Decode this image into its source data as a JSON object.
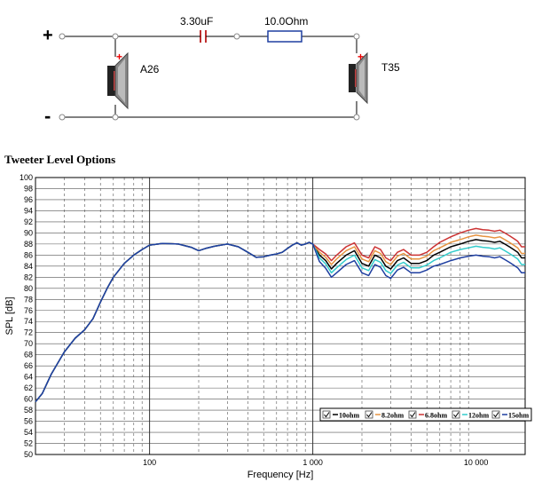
{
  "circuit": {
    "plus": "+",
    "minus": "-",
    "capacitor_label": "3.30uF",
    "resistor_label": "10.0Ohm",
    "woofer_label": "A26",
    "tweeter_label": "T35",
    "polarity_mark": "+"
  },
  "chart_data": {
    "type": "line",
    "title": "Tweeter Level Options",
    "xlabel": "Frequency [Hz]",
    "ylabel": "SPL [dB]",
    "xscale": "log",
    "xlim": [
      20,
      20000
    ],
    "ylim": [
      50,
      100
    ],
    "yticks": [
      "50",
      "52",
      "54",
      "56",
      "58",
      "60",
      "62",
      "64",
      "66",
      "68",
      "70",
      "72",
      "74",
      "76",
      "78",
      "80",
      "82",
      "84",
      "86",
      "88",
      "90",
      "92",
      "94",
      "96",
      "98",
      "100"
    ],
    "xticks": [
      {
        "value": 100,
        "label": "100"
      },
      {
        "value": 1000,
        "label": "1 000"
      },
      {
        "value": 10000,
        "label": "10 000"
      }
    ],
    "grid": true,
    "legend_placement": "bottom-right",
    "x": [
      20,
      22,
      25,
      30,
      35,
      40,
      45,
      50,
      55,
      60,
      70,
      80,
      90,
      100,
      120,
      150,
      180,
      200,
      220,
      250,
      300,
      350,
      400,
      450,
      500,
      550,
      600,
      650,
      700,
      750,
      800,
      850,
      900,
      950,
      1000,
      1100,
      1200,
      1300,
      1400,
      1600,
      1800,
      2000,
      2200,
      2400,
      2600,
      2800,
      3000,
      3300,
      3600,
      4000,
      4500,
      5000,
      5500,
      6000,
      7000,
      8000,
      9000,
      10000,
      11000,
      12000,
      13000,
      14000,
      15000,
      16000,
      17000,
      18000,
      19000,
      20000
    ],
    "base": [
      59.5,
      61,
      64.5,
      68.5,
      71,
      72.5,
      74.5,
      77.5,
      80,
      82,
      84.5,
      86,
      87,
      87.8,
      88.1,
      88,
      87.4,
      86.8,
      87.2,
      87.6,
      88,
      87.5,
      86.5,
      85.6,
      85.7,
      86,
      86.2,
      86.5,
      87.2,
      87.8,
      88.2,
      87.8,
      88,
      88.3,
      88
    ],
    "series": [
      {
        "name": "10ohm",
        "color": "#000000",
        "high": [
          86,
          85,
          83.5,
          84.5,
          86,
          86.8,
          84.5,
          84,
          86,
          85.5,
          84,
          83.5,
          85,
          85.5,
          84.5,
          84.5,
          85,
          86,
          86.5,
          87.5,
          88,
          88.5,
          88.8,
          88.6,
          88.5,
          88.3,
          88.5,
          88,
          87.5,
          87,
          86.5,
          85.5,
          85.5
        ]
      },
      {
        "name": "8.2ohm",
        "color": "#e69340",
        "high": [
          86.5,
          85.6,
          84.3,
          85.3,
          86.8,
          87.5,
          85.3,
          84.8,
          86.8,
          86.3,
          84.8,
          84.3,
          85.8,
          86.3,
          85.3,
          85.3,
          85.8,
          86.8,
          87.3,
          88.3,
          88.8,
          89.3,
          89.6,
          89.4,
          89.3,
          89.1,
          89.3,
          88.8,
          88.3,
          87.8,
          87.3,
          86.3,
          86.3
        ]
      },
      {
        "name": "6.8ohm",
        "color": "#cc3333",
        "high": [
          87,
          86.2,
          85,
          86,
          87.5,
          88.2,
          86,
          85.5,
          87.5,
          87,
          85.5,
          85,
          86.5,
          87,
          86,
          86,
          86.5,
          87.5,
          88.3,
          89.3,
          90,
          90.5,
          90.8,
          90.6,
          90.5,
          90.3,
          90.5,
          90,
          89.5,
          89,
          88.5,
          87.5,
          87.5
        ]
      },
      {
        "name": "12ohm",
        "color": "#33cccc",
        "high": [
          85.5,
          84.4,
          82.8,
          83.7,
          85.2,
          86,
          83.7,
          83.2,
          85.2,
          84.7,
          83.2,
          82.7,
          84.2,
          84.7,
          83.7,
          83.7,
          84.2,
          85,
          85.5,
          86.5,
          87,
          87.3,
          87.6,
          87.4,
          87.3,
          87.1,
          87.3,
          86.8,
          86.3,
          85.8,
          85.3,
          84.3,
          84.3
        ]
      },
      {
        "name": "15ohm",
        "color": "#1f3fa0",
        "high": [
          84.8,
          83.6,
          82,
          82.8,
          84.3,
          85,
          82.8,
          82.3,
          84.3,
          83.8,
          82.3,
          81.8,
          83.3,
          83.8,
          82.8,
          82.8,
          83.3,
          84,
          84.3,
          85,
          85.5,
          85.8,
          86,
          85.8,
          85.7,
          85.5,
          85.7,
          85.2,
          84.7,
          84.2,
          83.7,
          82.8,
          82.8
        ]
      }
    ]
  }
}
